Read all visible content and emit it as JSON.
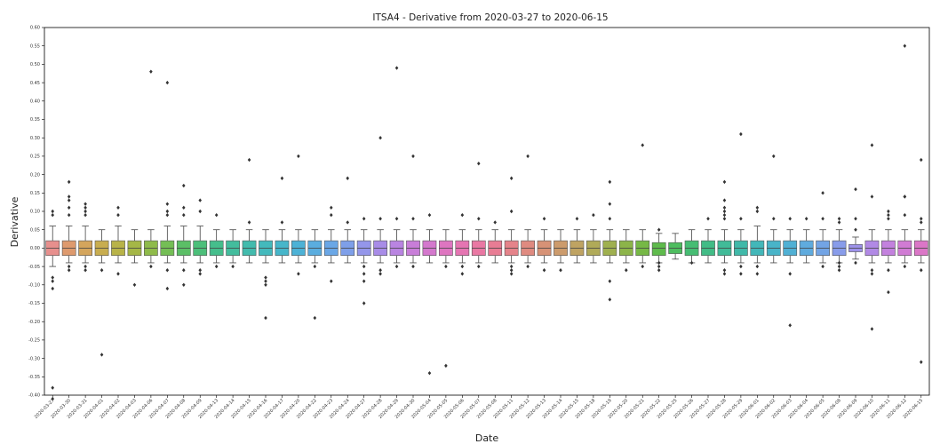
{
  "chart_data": {
    "type": "box",
    "title": "ITSA4 - Derivative from 2020-03-27 to 2020-06-15",
    "xlabel": "Date",
    "ylabel": "Derivative",
    "ylim": [
      -0.4,
      0.6
    ],
    "yticks": [
      "0.60",
      "0.55",
      "0.50",
      "0.45",
      "0.40",
      "0.35",
      "0.30",
      "0.25",
      "0.20",
      "0.15",
      "0.10",
      "0.05",
      "0.00",
      "-0.05",
      "-0.10",
      "-0.15",
      "-0.20",
      "-0.25",
      "-0.30",
      "-0.35",
      "-0.40"
    ],
    "grid": false,
    "categories": [
      "2020-03-27",
      "2020-03-30",
      "2020-03-31",
      "2020-04-01",
      "2020-04-02",
      "2020-04-03",
      "2020-04-06",
      "2020-04-07",
      "2020-04-08",
      "2020-04-09",
      "2020-04-13",
      "2020-04-14",
      "2020-04-15",
      "2020-04-16",
      "2020-04-17",
      "2020-04-20",
      "2020-04-22",
      "2020-04-23",
      "2020-04-24",
      "2020-04-27",
      "2020-04-28",
      "2020-04-29",
      "2020-04-30",
      "2020-05-04",
      "2020-05-05",
      "2020-05-06",
      "2020-05-07",
      "2020-05-08",
      "2020-05-11",
      "2020-05-12",
      "2020-05-13",
      "2020-05-14",
      "2020-05-15",
      "2020-05-18",
      "2020-05-19",
      "2020-05-20",
      "2020-05-21",
      "2020-05-22",
      "2020-05-25",
      "2020-05-26",
      "2020-05-27",
      "2020-05-28",
      "2020-05-29",
      "2020-06-01",
      "2020-06-02",
      "2020-06-03",
      "2020-06-04",
      "2020-06-05",
      "2020-06-08",
      "2020-06-09",
      "2020-06-10",
      "2020-06-11",
      "2020-06-12",
      "2020-06-15"
    ],
    "colors": [
      "#e78f8d",
      "#de9a6e",
      "#d4a55c",
      "#c8ad4f",
      "#b8b348",
      "#a5b746",
      "#8fbb4a",
      "#74be55",
      "#5bbf66",
      "#4cbf7a",
      "#45be8c",
      "#43bd9d",
      "#42bbad",
      "#43b9bc",
      "#46b6ca",
      "#4db2d6",
      "#5aaddf",
      "#6aa7e6",
      "#7e9fe9",
      "#9496ea",
      "#a88ce7",
      "#b984e1",
      "#c87dd8",
      "#d478cd",
      "#de75c0",
      "#e575b2",
      "#e978a3",
      "#e87c94",
      "#e5838a",
      "#df8a80",
      "#d79276",
      "#cc9b6c",
      "#bfa362",
      "#b0aa58",
      "#9fb04f",
      "#8cb449",
      "#76b846",
      "#5fbb4c",
      "#4ebd5f",
      "#46bd73",
      "#42bc86",
      "#41bb98",
      "#40b9a9",
      "#43b7b9",
      "#48b4c8",
      "#50b0d4",
      "#5fabde",
      "#72a4e5",
      "#889cea",
      "#9d92ea",
      "#b189e5",
      "#c381de",
      "#d07bd4",
      "#db76c7"
    ],
    "boxes": [
      {
        "q1": -0.02,
        "q3": 0.02,
        "wlo": -0.05,
        "whi": 0.06,
        "fliers": [
          0.1,
          0.09,
          -0.08,
          -0.09,
          -0.11,
          -0.38
        ]
      },
      {
        "q1": -0.02,
        "q3": 0.02,
        "wlo": -0.04,
        "whi": 0.06,
        "fliers": [
          0.18,
          0.14,
          0.13,
          0.11,
          0.09,
          -0.05,
          -0.06
        ]
      },
      {
        "q1": -0.02,
        "q3": 0.02,
        "wlo": -0.04,
        "whi": 0.06,
        "fliers": [
          0.1,
          0.11,
          0.12,
          0.09,
          -0.05,
          -0.06
        ]
      },
      {
        "q1": -0.02,
        "q3": 0.02,
        "wlo": -0.04,
        "whi": 0.05,
        "fliers": [
          -0.06,
          -0.29
        ]
      },
      {
        "q1": -0.02,
        "q3": 0.02,
        "wlo": -0.04,
        "whi": 0.06,
        "fliers": [
          0.11,
          0.09,
          -0.07
        ]
      },
      {
        "q1": -0.02,
        "q3": 0.02,
        "wlo": -0.04,
        "whi": 0.05,
        "fliers": [
          -0.1
        ]
      },
      {
        "q1": -0.02,
        "q3": 0.02,
        "wlo": -0.04,
        "whi": 0.05,
        "fliers": [
          0.48,
          -0.05
        ]
      },
      {
        "q1": -0.02,
        "q3": 0.02,
        "wlo": -0.04,
        "whi": 0.06,
        "fliers": [
          0.45,
          0.12,
          0.1,
          0.09,
          -0.06,
          -0.11
        ]
      },
      {
        "q1": -0.02,
        "q3": 0.02,
        "wlo": -0.04,
        "whi": 0.06,
        "fliers": [
          0.17,
          0.11,
          0.09,
          -0.06,
          -0.1
        ]
      },
      {
        "q1": -0.02,
        "q3": 0.02,
        "wlo": -0.04,
        "whi": 0.06,
        "fliers": [
          0.13,
          0.1,
          -0.06,
          -0.07
        ]
      },
      {
        "q1": -0.02,
        "q3": 0.02,
        "wlo": -0.04,
        "whi": 0.05,
        "fliers": [
          0.09,
          -0.05
        ]
      },
      {
        "q1": -0.02,
        "q3": 0.02,
        "wlo": -0.04,
        "whi": 0.05,
        "fliers": [
          -0.05
        ]
      },
      {
        "q1": -0.02,
        "q3": 0.02,
        "wlo": -0.04,
        "whi": 0.05,
        "fliers": [
          0.24,
          0.07
        ]
      },
      {
        "q1": -0.02,
        "q3": 0.02,
        "wlo": -0.04,
        "whi": 0.05,
        "fliers": [
          -0.08,
          -0.09,
          -0.1,
          -0.19
        ]
      },
      {
        "q1": -0.02,
        "q3": 0.02,
        "wlo": -0.04,
        "whi": 0.05,
        "fliers": [
          0.19,
          0.07
        ]
      },
      {
        "q1": -0.02,
        "q3": 0.02,
        "wlo": -0.04,
        "whi": 0.05,
        "fliers": [
          0.25,
          -0.07
        ]
      },
      {
        "q1": -0.02,
        "q3": 0.02,
        "wlo": -0.04,
        "whi": 0.05,
        "fliers": [
          -0.05,
          -0.19
        ]
      },
      {
        "q1": -0.02,
        "q3": 0.02,
        "wlo": -0.04,
        "whi": 0.05,
        "fliers": [
          0.11,
          0.09,
          -0.09
        ]
      },
      {
        "q1": -0.02,
        "q3": 0.02,
        "wlo": -0.04,
        "whi": 0.05,
        "fliers": [
          0.19,
          0.07
        ]
      },
      {
        "q1": -0.02,
        "q3": 0.02,
        "wlo": -0.04,
        "whi": 0.05,
        "fliers": [
          0.08,
          -0.05,
          -0.07,
          -0.09,
          -0.15
        ]
      },
      {
        "q1": -0.02,
        "q3": 0.02,
        "wlo": -0.04,
        "whi": 0.05,
        "fliers": [
          0.3,
          0.08,
          -0.06,
          -0.07
        ]
      },
      {
        "q1": -0.02,
        "q3": 0.02,
        "wlo": -0.04,
        "whi": 0.05,
        "fliers": [
          0.49,
          0.08,
          -0.05
        ]
      },
      {
        "q1": -0.02,
        "q3": 0.02,
        "wlo": -0.04,
        "whi": 0.05,
        "fliers": [
          0.25,
          0.08,
          -0.05
        ]
      },
      {
        "q1": -0.02,
        "q3": 0.02,
        "wlo": -0.04,
        "whi": 0.05,
        "fliers": [
          0.09,
          -0.34
        ]
      },
      {
        "q1": -0.02,
        "q3": 0.02,
        "wlo": -0.04,
        "whi": 0.05,
        "fliers": [
          -0.05,
          -0.32
        ]
      },
      {
        "q1": -0.02,
        "q3": 0.02,
        "wlo": -0.04,
        "whi": 0.05,
        "fliers": [
          0.09,
          -0.05,
          -0.07
        ]
      },
      {
        "q1": -0.02,
        "q3": 0.02,
        "wlo": -0.04,
        "whi": 0.05,
        "fliers": [
          0.23,
          0.08,
          -0.05
        ]
      },
      {
        "q1": -0.02,
        "q3": 0.02,
        "wlo": -0.04,
        "whi": 0.05,
        "fliers": [
          0.07
        ]
      },
      {
        "q1": -0.02,
        "q3": 0.02,
        "wlo": -0.04,
        "whi": 0.05,
        "fliers": [
          0.19,
          0.1,
          -0.05,
          -0.06,
          -0.07
        ]
      },
      {
        "q1": -0.02,
        "q3": 0.02,
        "wlo": -0.04,
        "whi": 0.05,
        "fliers": [
          0.25,
          -0.05
        ]
      },
      {
        "q1": -0.02,
        "q3": 0.02,
        "wlo": -0.04,
        "whi": 0.05,
        "fliers": [
          0.08,
          -0.06
        ]
      },
      {
        "q1": -0.02,
        "q3": 0.02,
        "wlo": -0.04,
        "whi": 0.05,
        "fliers": [
          -0.06
        ]
      },
      {
        "q1": -0.02,
        "q3": 0.02,
        "wlo": -0.04,
        "whi": 0.05,
        "fliers": [
          0.08
        ]
      },
      {
        "q1": -0.02,
        "q3": 0.02,
        "wlo": -0.04,
        "whi": 0.05,
        "fliers": [
          0.09
        ]
      },
      {
        "q1": -0.02,
        "q3": 0.02,
        "wlo": -0.04,
        "whi": 0.05,
        "fliers": [
          0.18,
          0.12,
          0.08,
          -0.09,
          -0.14
        ]
      },
      {
        "q1": -0.02,
        "q3": 0.02,
        "wlo": -0.04,
        "whi": 0.05,
        "fliers": [
          -0.06
        ]
      },
      {
        "q1": -0.02,
        "q3": 0.02,
        "wlo": -0.04,
        "whi": 0.05,
        "fliers": [
          0.28,
          -0.05
        ]
      },
      {
        "q1": -0.02,
        "q3": 0.015,
        "wlo": -0.04,
        "whi": 0.04,
        "fliers": [
          0.05,
          -0.04,
          -0.05,
          -0.06
        ]
      },
      {
        "q1": -0.015,
        "q3": 0.015,
        "wlo": -0.03,
        "whi": 0.04,
        "fliers": []
      },
      {
        "q1": -0.02,
        "q3": 0.02,
        "wlo": -0.04,
        "whi": 0.05,
        "fliers": [
          -0.04
        ]
      },
      {
        "q1": -0.02,
        "q3": 0.02,
        "wlo": -0.04,
        "whi": 0.05,
        "fliers": [
          0.08
        ]
      },
      {
        "q1": -0.02,
        "q3": 0.02,
        "wlo": -0.04,
        "whi": 0.05,
        "fliers": [
          0.18,
          0.13,
          0.11,
          0.1,
          0.09,
          0.08,
          -0.06,
          -0.07
        ]
      },
      {
        "q1": -0.02,
        "q3": 0.02,
        "wlo": -0.04,
        "whi": 0.05,
        "fliers": [
          0.31,
          0.08,
          -0.05,
          -0.07
        ]
      },
      {
        "q1": -0.02,
        "q3": 0.02,
        "wlo": -0.04,
        "whi": 0.06,
        "fliers": [
          0.11,
          0.1,
          -0.05,
          -0.07
        ]
      },
      {
        "q1": -0.02,
        "q3": 0.02,
        "wlo": -0.04,
        "whi": 0.05,
        "fliers": [
          0.25,
          0.08
        ]
      },
      {
        "q1": -0.02,
        "q3": 0.02,
        "wlo": -0.04,
        "whi": 0.05,
        "fliers": [
          0.08,
          -0.07
        ]
      },
      {
        "q1": -0.02,
        "q3": 0.02,
        "wlo": -0.04,
        "whi": 0.05,
        "fliers": [
          0.08
        ]
      },
      {
        "q1": -0.02,
        "q3": 0.02,
        "wlo": -0.04,
        "whi": 0.05,
        "fliers": [
          0.08,
          -0.05
        ]
      },
      {
        "q1": -0.02,
        "q3": 0.02,
        "wlo": -0.04,
        "whi": 0.05,
        "fliers": [
          0.08,
          0.07,
          -0.04,
          -0.05,
          -0.06
        ]
      },
      {
        "q1": -0.01,
        "q3": 0.01,
        "wlo": -0.03,
        "whi": 0.03,
        "fliers": [
          0.16,
          0.08,
          0.05,
          -0.04
        ]
      },
      {
        "q1": -0.02,
        "q3": 0.02,
        "wlo": -0.04,
        "whi": 0.05,
        "fliers": [
          0.28,
          0.14,
          -0.06,
          -0.07
        ]
      },
      {
        "q1": -0.02,
        "q3": 0.02,
        "wlo": -0.04,
        "whi": 0.05,
        "fliers": [
          0.09,
          0.08,
          -0.06,
          -0.12
        ]
      },
      {
        "q1": -0.02,
        "q3": 0.02,
        "wlo": -0.04,
        "whi": 0.05,
        "fliers": [
          0.55,
          0.14,
          0.09,
          -0.05
        ]
      },
      {
        "q1": -0.02,
        "q3": 0.02,
        "wlo": -0.04,
        "whi": 0.05,
        "fliers": [
          0.24,
          0.08,
          -0.06
        ]
      }
    ],
    "extra_markers": [
      {
        "i": 0,
        "values": [
          -0.41
        ]
      },
      {
        "i": 45,
        "values": [
          -0.21
        ]
      },
      {
        "i": 47,
        "values": [
          0.15
        ]
      },
      {
        "i": 50,
        "values": [
          -0.22
        ]
      },
      {
        "i": 51,
        "values": [
          0.1
        ]
      },
      {
        "i": 52,
        "values": [
          0.14
        ]
      },
      {
        "i": 53,
        "values": [
          -0.31,
          0.07
        ]
      }
    ]
  }
}
